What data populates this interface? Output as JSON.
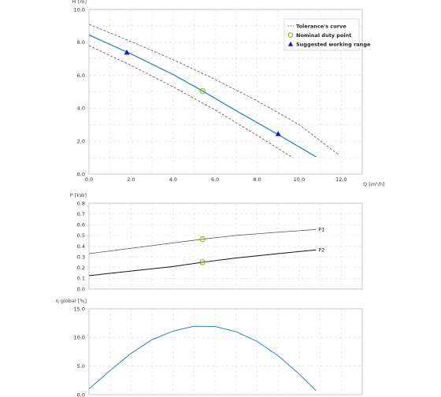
{
  "chart_data": [
    {
      "type": "line",
      "ylabel": "H [m]",
      "xlabel": "Q [m³/h]",
      "xlim": [
        0,
        13
      ],
      "ylim": [
        0,
        10
      ],
      "xticks": [
        0,
        2,
        4,
        6,
        8,
        10,
        12
      ],
      "xtick_labels": [
        "0.0",
        "2.0",
        "4.0",
        "6.0",
        "8.0",
        "10.0",
        "12.0"
      ],
      "yticks": [
        0,
        2,
        4,
        6,
        8,
        10
      ],
      "ytick_labels": [
        "0.0",
        "2.0",
        "4.0",
        "6.0",
        "8.0",
        "10.0"
      ],
      "grid": true,
      "legend_position": "top-right",
      "legend": [
        "Tolerance's curve",
        "Nominal duty point",
        "Suggested working range"
      ],
      "series": [
        {
          "role": "curve",
          "color": "#2a86b8",
          "x": [
            0,
            2,
            4,
            5.4,
            7,
            9,
            10.8
          ],
          "y": [
            8.45,
            7.3,
            6.05,
            5.05,
            3.85,
            2.4,
            1.05
          ]
        },
        {
          "role": "tolerance",
          "color": "#555555",
          "x": [
            0,
            2,
            4,
            6,
            8,
            10,
            11.9
          ],
          "y": [
            9.1,
            8.05,
            6.95,
            5.75,
            4.45,
            3.0,
            1.15
          ]
        },
        {
          "role": "tolerance",
          "color": "#555555",
          "x": [
            0,
            2,
            4,
            6,
            8,
            9.7
          ],
          "y": [
            7.8,
            6.6,
            5.3,
            3.9,
            2.35,
            1.0
          ]
        }
      ],
      "duty_point": {
        "x": 5.4,
        "y": 5.05,
        "color": "#8ab82a"
      },
      "working_range": [
        {
          "x": 1.8,
          "y": 7.4
        },
        {
          "x": 9.0,
          "y": 2.45
        }
      ],
      "working_range_color": "#1a1aa8"
    },
    {
      "type": "line",
      "ylabel": "P [kW]",
      "xlim": [
        0,
        13
      ],
      "ylim": [
        0,
        0.8
      ],
      "xticks": [
        0,
        2,
        4,
        6,
        8,
        10,
        12
      ],
      "yticks": [
        0,
        0.1,
        0.2,
        0.3,
        0.4,
        0.5,
        0.6,
        0.7,
        0.8
      ],
      "ytick_labels": [
        "0.0",
        "0.1",
        "0.2",
        "0.3",
        "0.4",
        "0.5",
        "0.6",
        "0.7",
        "0.8"
      ],
      "grid": true,
      "series": [
        {
          "name": "P1",
          "color": "#555555",
          "x": [
            0,
            2,
            4,
            5.4,
            7,
            9,
            10.8
          ],
          "y": [
            0.33,
            0.38,
            0.43,
            0.465,
            0.5,
            0.53,
            0.555
          ]
        },
        {
          "name": "P2",
          "color": "#111111",
          "x": [
            0,
            2,
            4,
            5.4,
            7,
            9,
            10.8
          ],
          "y": [
            0.125,
            0.168,
            0.21,
            0.25,
            0.29,
            0.33,
            0.365
          ]
        }
      ],
      "duty_points": [
        {
          "x": 5.4,
          "y": 0.465
        },
        {
          "x": 5.4,
          "y": 0.25
        }
      ],
      "duty_point_color": "#8ab82a"
    },
    {
      "type": "line",
      "ylabel": "η global [%]",
      "xlim": [
        0,
        13
      ],
      "ylim": [
        0,
        15
      ],
      "xticks": [
        0,
        2,
        4,
        6,
        8,
        10,
        12
      ],
      "yticks": [
        0,
        5,
        10,
        15
      ],
      "ytick_labels": [
        "0.0",
        "5.0",
        "10.0",
        "15.0"
      ],
      "grid": true,
      "series": [
        {
          "color": "#2a86b8",
          "x": [
            0,
            1,
            2,
            3,
            4,
            5,
            6,
            7,
            8,
            9,
            10,
            10.8
          ],
          "y": [
            1.0,
            4.2,
            7.2,
            9.6,
            11.1,
            11.95,
            11.9,
            11.0,
            9.3,
            6.8,
            3.6,
            0.7
          ]
        }
      ]
    }
  ]
}
